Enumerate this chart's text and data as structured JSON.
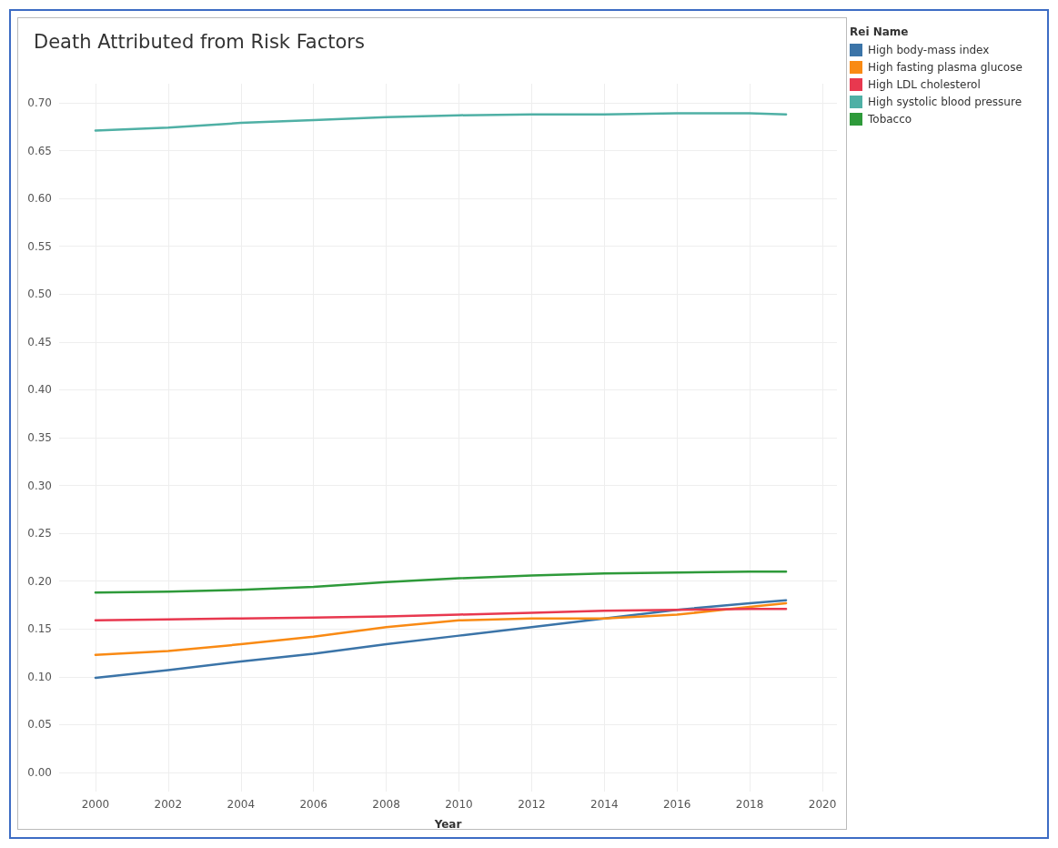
{
  "chart_data": {
    "type": "line",
    "title": "Death Attributed from Risk Factors",
    "xlabel": "Year",
    "legend_title": "Rei Name",
    "x": [
      2000,
      2002,
      2004,
      2006,
      2008,
      2010,
      2012,
      2014,
      2016,
      2018,
      2019
    ],
    "series": [
      {
        "name": "High body-mass index",
        "color": "#3b74a8",
        "values": [
          0.099,
          0.107,
          0.116,
          0.124,
          0.134,
          0.143,
          0.152,
          0.161,
          0.17,
          0.177,
          0.18
        ]
      },
      {
        "name": "High fasting plasma glucose",
        "color": "#f98a14",
        "values": [
          0.123,
          0.127,
          0.134,
          0.142,
          0.152,
          0.159,
          0.161,
          0.161,
          0.165,
          0.173,
          0.177
        ]
      },
      {
        "name": "High LDL cholesterol",
        "color": "#e8384f",
        "values": [
          0.159,
          0.16,
          0.161,
          0.162,
          0.163,
          0.165,
          0.167,
          0.169,
          0.17,
          0.171,
          0.171
        ]
      },
      {
        "name": "High systolic blood pressure",
        "color": "#4fb0a5",
        "values": [
          0.671,
          0.674,
          0.679,
          0.682,
          0.685,
          0.687,
          0.688,
          0.688,
          0.689,
          0.689,
          0.688
        ]
      },
      {
        "name": "Tobacco",
        "color": "#2e9a3a",
        "values": [
          0.188,
          0.189,
          0.191,
          0.194,
          0.199,
          0.203,
          0.206,
          0.208,
          0.209,
          0.21,
          0.21
        ]
      }
    ],
    "xlim": [
      1999,
      2020.4
    ],
    "xticks": [
      2000,
      2002,
      2004,
      2006,
      2008,
      2010,
      2012,
      2014,
      2016,
      2018,
      2020
    ],
    "ylim": [
      -0.02,
      0.72
    ],
    "yticks": [
      {
        "value": 0,
        "label": "0.00"
      },
      {
        "value": 0.05,
        "label": "0.05"
      },
      {
        "value": 0.1,
        "label": "0.10"
      },
      {
        "value": 0.15,
        "label": "0.15"
      },
      {
        "value": 0.2,
        "label": "0.20"
      },
      {
        "value": 0.25,
        "label": "0.25"
      },
      {
        "value": 0.3,
        "label": "0.30"
      },
      {
        "value": 0.35,
        "label": "0.35"
      },
      {
        "value": 0.4,
        "label": "0.40"
      },
      {
        "value": 0.45,
        "label": "0.45"
      },
      {
        "value": 0.5,
        "label": "0.50"
      },
      {
        "value": 0.55,
        "label": "0.55"
      },
      {
        "value": 0.6,
        "label": "0.60"
      },
      {
        "value": 0.65,
        "label": "0.65"
      },
      {
        "value": 0.7,
        "label": "0.70"
      }
    ],
    "grid": true,
    "legend": "top right",
    "marker": "none",
    "line_style": "solid"
  }
}
